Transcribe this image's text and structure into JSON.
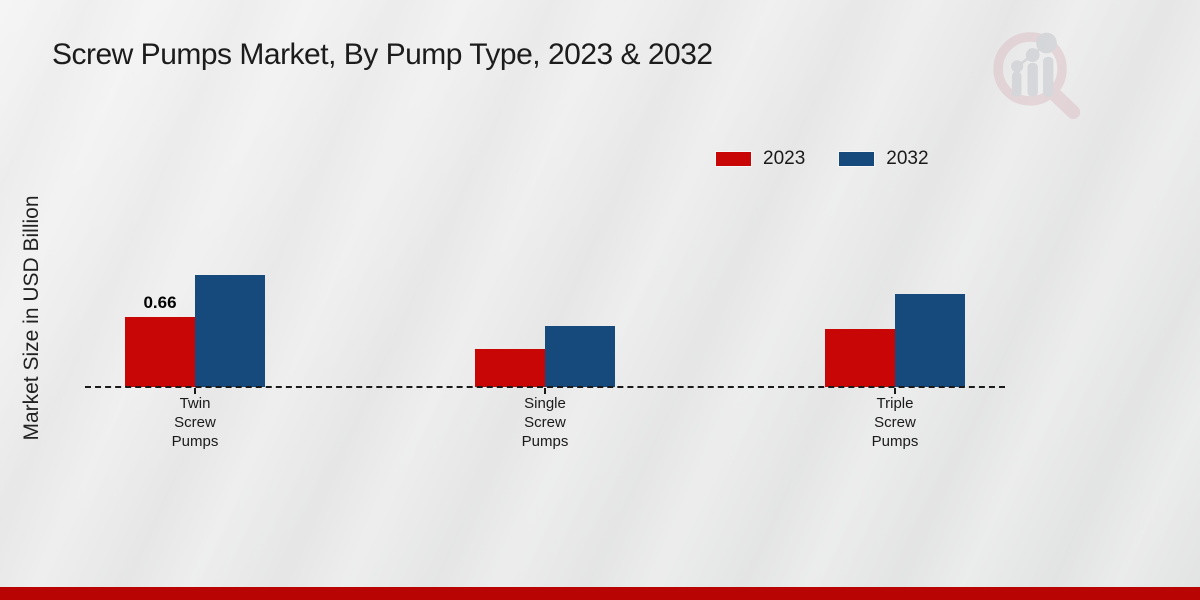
{
  "page": {
    "title": "Screw Pumps Market, By Pump Type, 2023 & 2032",
    "ylabel": "Market Size in USD Billion",
    "watermark_name": "market-research-magnifier-logo"
  },
  "colors": {
    "series_2023": "#c80606",
    "series_2032": "#16497c",
    "axis": "#1a1a1a",
    "title_text": "#1c1c1c",
    "footer_band": "#b90404",
    "watermark_pink": "#dcc2c7",
    "watermark_gray": "#c3c6cc"
  },
  "chart_data": {
    "type": "bar",
    "title": "Screw Pumps Market, By Pump Type, 2023 & 2032",
    "xlabel": "",
    "ylabel": "Market Size in USD Billion",
    "categories": [
      "Twin Screw Pumps",
      "Single Screw Pumps",
      "Triple Screw Pumps"
    ],
    "category_label_lines": [
      [
        "Twin",
        "Screw",
        "Pumps"
      ],
      [
        "Single",
        "Screw",
        "Pumps"
      ],
      [
        "Triple",
        "Screw",
        "Pumps"
      ]
    ],
    "series": [
      {
        "name": "2023",
        "color": "#c80606",
        "values": [
          0.66,
          0.36,
          0.55
        ]
      },
      {
        "name": "2032",
        "color": "#16497c",
        "values": [
          1.06,
          0.58,
          0.88
        ]
      }
    ],
    "data_labels": [
      {
        "series": "2023",
        "category": "Twin Screw Pumps",
        "text": "0.66"
      }
    ],
    "ylim": [
      0,
      1.2
    ],
    "y_axis_ticks_visible": false,
    "gridlines": false,
    "baseline_style": "dashed",
    "legend_position": "top-right"
  },
  "legend": {
    "items": [
      {
        "label": "2023",
        "color": "#c80606"
      },
      {
        "label": "2032",
        "color": "#16497c"
      }
    ]
  }
}
